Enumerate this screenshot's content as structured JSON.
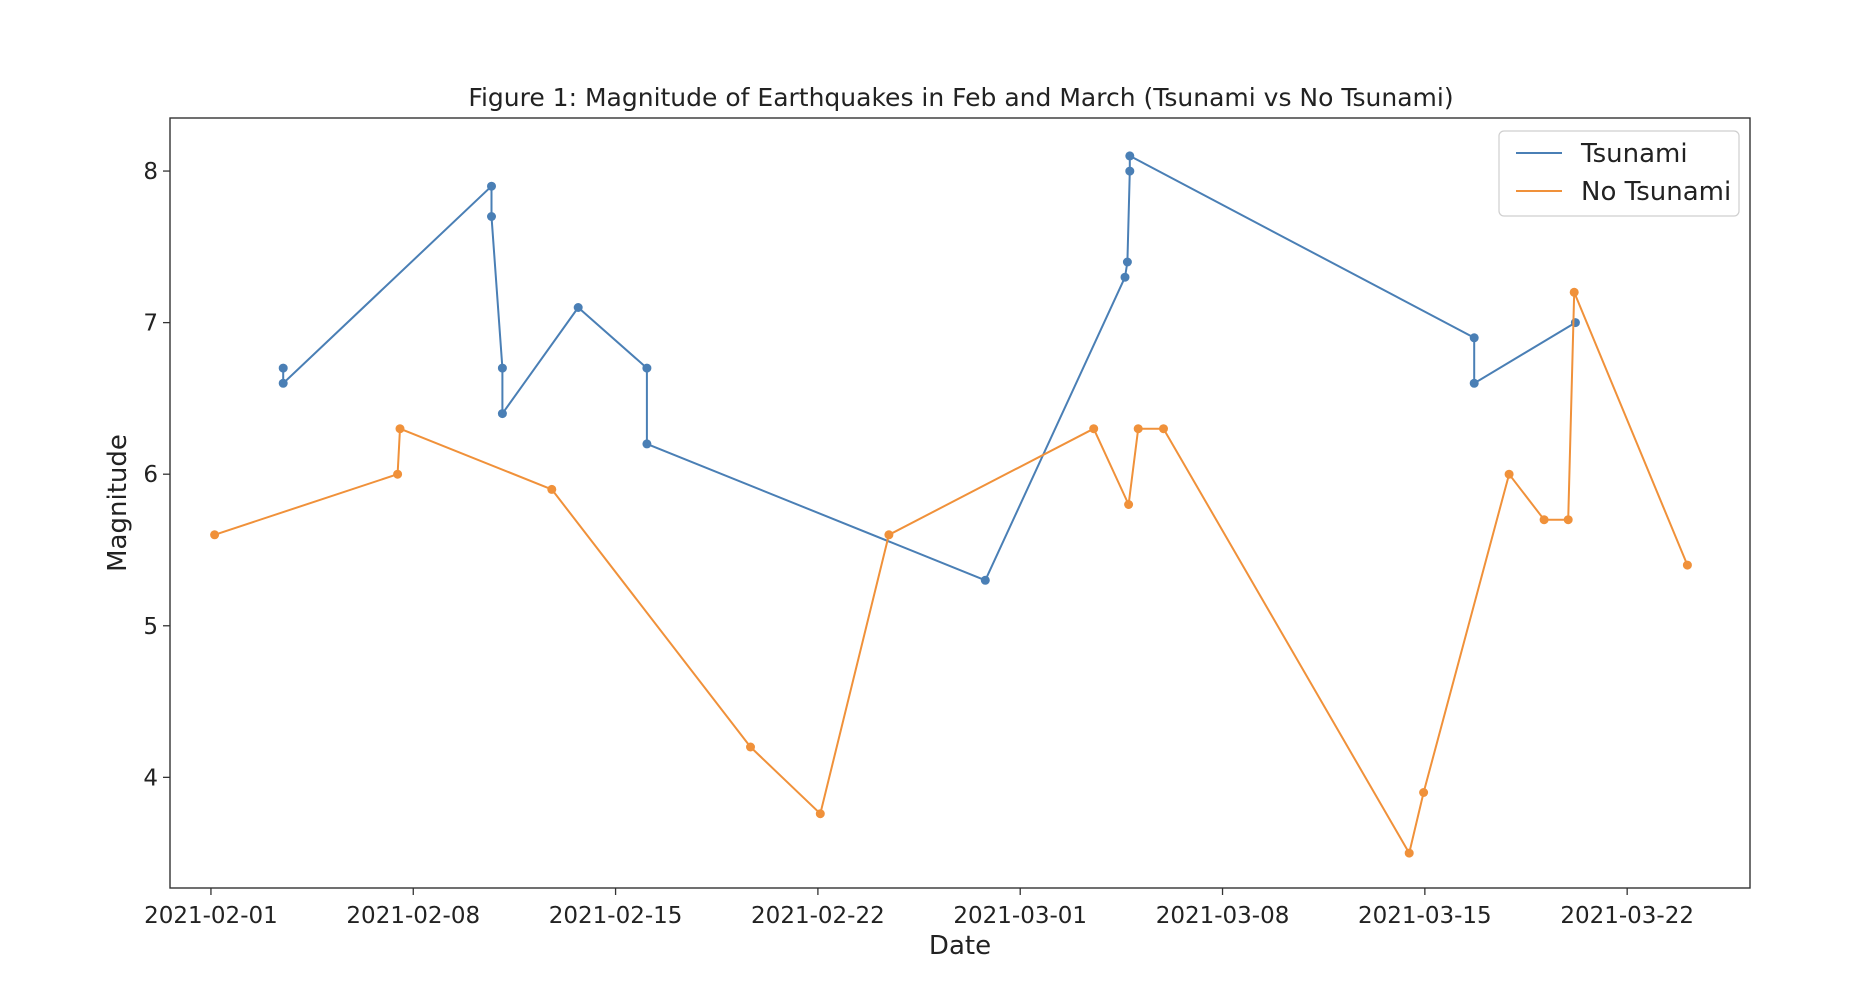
{
  "chart_data": {
    "type": "line",
    "title": "Figure 1: Magnitude of Earthquakes in Feb and March (Tsunami vs No Tsunami)",
    "xlabel": "Date",
    "ylabel": "Magnitude",
    "x_type": "date",
    "xlim": [
      "2021-01-30T14:00",
      "2021-03-26T06:00"
    ],
    "ylim": [
      3.27,
      8.35
    ],
    "x_ticks": [
      "2021-02-01",
      "2021-02-08",
      "2021-02-15",
      "2021-02-22",
      "2021-03-01",
      "2021-03-08",
      "2021-03-15",
      "2021-03-22"
    ],
    "y_ticks": [
      4,
      5,
      6,
      7,
      8
    ],
    "grid": false,
    "legend_position": "top-right",
    "series": [
      {
        "name": "Tsunami",
        "color": "#4a7fb5",
        "points": [
          [
            "2021-02-03T12:00",
            6.7
          ],
          [
            "2021-02-03T12:00",
            6.6
          ],
          [
            "2021-02-10T17:00",
            7.9
          ],
          [
            "2021-02-10T17:00",
            7.7
          ],
          [
            "2021-02-11T02:00",
            6.7
          ],
          [
            "2021-02-11T02:00",
            6.4
          ],
          [
            "2021-02-13T17:00",
            7.1
          ],
          [
            "2021-02-16T02:00",
            6.7
          ],
          [
            "2021-02-16T02:00",
            6.2
          ],
          [
            "2021-02-27T19:00",
            5.3
          ],
          [
            "2021-03-04T15:00",
            7.3
          ],
          [
            "2021-03-04T17:00",
            7.4
          ],
          [
            "2021-03-04T19:00",
            8.0
          ],
          [
            "2021-03-04T19:00",
            8.1
          ],
          [
            "2021-03-16T17:00",
            6.9
          ],
          [
            "2021-03-16T17:00",
            6.6
          ],
          [
            "2021-03-20T05:00",
            7.0
          ]
        ]
      },
      {
        "name": "No Tsunami",
        "color": "#f0913a",
        "points": [
          [
            "2021-02-01T03:00",
            5.6
          ],
          [
            "2021-02-07T11:00",
            6.0
          ],
          [
            "2021-02-07T13:00",
            6.3
          ],
          [
            "2021-02-12T19:00",
            5.9
          ],
          [
            "2021-02-19T16:00",
            4.2
          ],
          [
            "2021-02-22T02:00",
            3.76
          ],
          [
            "2021-02-24T11:00",
            5.6
          ],
          [
            "2021-03-03T13:00",
            6.3
          ],
          [
            "2021-03-04T18:00",
            5.8
          ],
          [
            "2021-03-05T02:00",
            6.3
          ],
          [
            "2021-03-05T23:00",
            6.3
          ],
          [
            "2021-03-14T11:00",
            3.5
          ],
          [
            "2021-03-14T23:00",
            3.9
          ],
          [
            "2021-03-17T22:00",
            6.0
          ],
          [
            "2021-03-19T03:00",
            5.7
          ],
          [
            "2021-03-19T23:00",
            5.7
          ],
          [
            "2021-03-20T04:00",
            7.2
          ],
          [
            "2021-03-24T02:00",
            5.4
          ]
        ]
      }
    ]
  }
}
